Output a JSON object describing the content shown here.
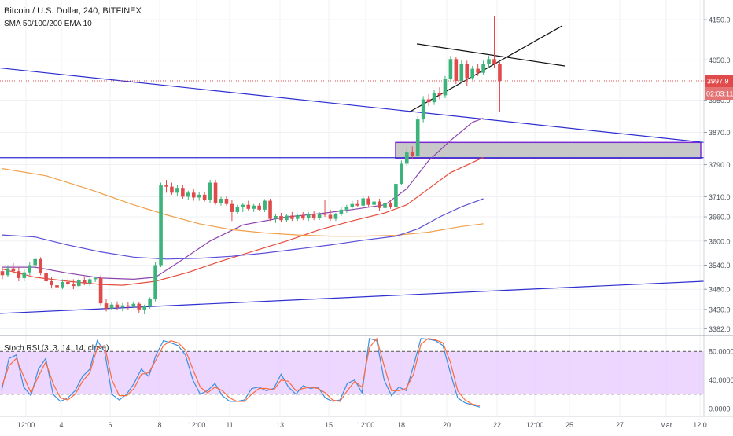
{
  "header": {
    "symbol_line": "Bitcoin / U.S. Dollar, 240, BITFINEX",
    "indicator_line": "SMA 50/100/200 EMA 10"
  },
  "colors": {
    "up_candle": "#3cb37a",
    "down_candle": "#e04a4a",
    "sma50": "#8e44ad",
    "sma100": "#e74c3c",
    "sma200": "#f0a04b",
    "ema10": "#5b4fd8",
    "trendline": "#2f2fd0",
    "stoch_k": "#3a8fe0",
    "stoch_d": "#ff6a3a",
    "stoch_band": "#e6c6ff",
    "price_label_bg": "#e04a4a"
  },
  "chart_data": [
    {
      "type": "candlestick",
      "title": "Bitcoin / U.S. Dollar, 240, BITFINEX",
      "y_ticks": [
        4150.0,
        4050.0,
        3950.0,
        3870.0,
        3790.0,
        3710.0,
        3660.0,
        3600.0,
        3540.0,
        3480.0,
        3430.0,
        3382.0
      ],
      "x_ticks": [
        "12:00",
        "4",
        "6",
        "8",
        "12:00",
        "11",
        "13",
        "15",
        "12:00",
        "18",
        "20",
        "22",
        "12:00",
        "25",
        "27",
        "Mar",
        "12:0"
      ],
      "last_price_label": "3997.9",
      "countdown_label": "02:03:11",
      "candles": [
        {
          "o": 3525,
          "h": 3535,
          "l": 3505,
          "c": 3515
        },
        {
          "o": 3515,
          "h": 3540,
          "l": 3510,
          "c": 3532
        },
        {
          "o": 3532,
          "h": 3545,
          "l": 3520,
          "c": 3525
        },
        {
          "o": 3525,
          "h": 3535,
          "l": 3500,
          "c": 3508
        },
        {
          "o": 3508,
          "h": 3530,
          "l": 3500,
          "c": 3522
        },
        {
          "o": 3522,
          "h": 3548,
          "l": 3515,
          "c": 3540
        },
        {
          "o": 3540,
          "h": 3560,
          "l": 3530,
          "c": 3555
        },
        {
          "o": 3555,
          "h": 3560,
          "l": 3515,
          "c": 3520
        },
        {
          "o": 3520,
          "h": 3528,
          "l": 3495,
          "c": 3500
        },
        {
          "o": 3500,
          "h": 3510,
          "l": 3482,
          "c": 3490
        },
        {
          "o": 3490,
          "h": 3500,
          "l": 3475,
          "c": 3485
        },
        {
          "o": 3485,
          "h": 3505,
          "l": 3480,
          "c": 3498
        },
        {
          "o": 3498,
          "h": 3512,
          "l": 3485,
          "c": 3492
        },
        {
          "o": 3492,
          "h": 3505,
          "l": 3480,
          "c": 3488
        },
        {
          "o": 3488,
          "h": 3508,
          "l": 3482,
          "c": 3502
        },
        {
          "o": 3502,
          "h": 3512,
          "l": 3490,
          "c": 3495
        },
        {
          "o": 3495,
          "h": 3510,
          "l": 3488,
          "c": 3505
        },
        {
          "o": 3505,
          "h": 3512,
          "l": 3498,
          "c": 3508
        },
        {
          "o": 3508,
          "h": 3515,
          "l": 3440,
          "c": 3445
        },
        {
          "o": 3445,
          "h": 3455,
          "l": 3425,
          "c": 3432
        },
        {
          "o": 3432,
          "h": 3448,
          "l": 3428,
          "c": 3442
        },
        {
          "o": 3442,
          "h": 3450,
          "l": 3428,
          "c": 3435
        },
        {
          "o": 3435,
          "h": 3446,
          "l": 3425,
          "c": 3440
        },
        {
          "o": 3440,
          "h": 3448,
          "l": 3430,
          "c": 3437
        },
        {
          "o": 3437,
          "h": 3450,
          "l": 3433,
          "c": 3444
        },
        {
          "o": 3444,
          "h": 3448,
          "l": 3422,
          "c": 3430
        },
        {
          "o": 3430,
          "h": 3442,
          "l": 3418,
          "c": 3438
        },
        {
          "o": 3438,
          "h": 3460,
          "l": 3432,
          "c": 3455
        },
        {
          "o": 3455,
          "h": 3548,
          "l": 3450,
          "c": 3540
        },
        {
          "o": 3540,
          "h": 3745,
          "l": 3535,
          "c": 3738
        },
        {
          "o": 3738,
          "h": 3752,
          "l": 3720,
          "c": 3735
        },
        {
          "o": 3735,
          "h": 3745,
          "l": 3715,
          "c": 3720
        },
        {
          "o": 3720,
          "h": 3740,
          "l": 3712,
          "c": 3732
        },
        {
          "o": 3732,
          "h": 3740,
          "l": 3705,
          "c": 3710
        },
        {
          "o": 3710,
          "h": 3725,
          "l": 3702,
          "c": 3720
        },
        {
          "o": 3720,
          "h": 3730,
          "l": 3700,
          "c": 3708
        },
        {
          "o": 3708,
          "h": 3722,
          "l": 3700,
          "c": 3715
        },
        {
          "o": 3715,
          "h": 3722,
          "l": 3698,
          "c": 3702
        },
        {
          "o": 3702,
          "h": 3752,
          "l": 3695,
          "c": 3745
        },
        {
          "o": 3745,
          "h": 3752,
          "l": 3690,
          "c": 3695
        },
        {
          "o": 3695,
          "h": 3710,
          "l": 3688,
          "c": 3705
        },
        {
          "o": 3705,
          "h": 3712,
          "l": 3688,
          "c": 3692
        },
        {
          "o": 3692,
          "h": 3702,
          "l": 3650,
          "c": 3672
        },
        {
          "o": 3672,
          "h": 3690,
          "l": 3668,
          "c": 3685
        },
        {
          "o": 3685,
          "h": 3695,
          "l": 3672,
          "c": 3690
        },
        {
          "o": 3690,
          "h": 3700,
          "l": 3676,
          "c": 3680
        },
        {
          "o": 3680,
          "h": 3692,
          "l": 3672,
          "c": 3688
        },
        {
          "o": 3688,
          "h": 3695,
          "l": 3676,
          "c": 3678
        },
        {
          "o": 3678,
          "h": 3704,
          "l": 3672,
          "c": 3700
        },
        {
          "o": 3700,
          "h": 3705,
          "l": 3650,
          "c": 3655
        },
        {
          "o": 3655,
          "h": 3668,
          "l": 3645,
          "c": 3662
        },
        {
          "o": 3662,
          "h": 3670,
          "l": 3648,
          "c": 3652
        },
        {
          "o": 3652,
          "h": 3666,
          "l": 3648,
          "c": 3663
        },
        {
          "o": 3663,
          "h": 3672,
          "l": 3650,
          "c": 3655
        },
        {
          "o": 3655,
          "h": 3668,
          "l": 3650,
          "c": 3664
        },
        {
          "o": 3664,
          "h": 3672,
          "l": 3652,
          "c": 3656
        },
        {
          "o": 3656,
          "h": 3672,
          "l": 3650,
          "c": 3668
        },
        {
          "o": 3668,
          "h": 3675,
          "l": 3652,
          "c": 3658
        },
        {
          "o": 3658,
          "h": 3672,
          "l": 3652,
          "c": 3668
        },
        {
          "o": 3668,
          "h": 3702,
          "l": 3660,
          "c": 3665
        },
        {
          "o": 3665,
          "h": 3678,
          "l": 3650,
          "c": 3655
        },
        {
          "o": 3655,
          "h": 3670,
          "l": 3650,
          "c": 3668
        },
        {
          "o": 3668,
          "h": 3685,
          "l": 3662,
          "c": 3678
        },
        {
          "o": 3678,
          "h": 3690,
          "l": 3670,
          "c": 3685
        },
        {
          "o": 3685,
          "h": 3700,
          "l": 3678,
          "c": 3692
        },
        {
          "o": 3692,
          "h": 3702,
          "l": 3684,
          "c": 3688
        },
        {
          "o": 3688,
          "h": 3712,
          "l": 3684,
          "c": 3706
        },
        {
          "o": 3706,
          "h": 3712,
          "l": 3685,
          "c": 3690
        },
        {
          "o": 3690,
          "h": 3702,
          "l": 3680,
          "c": 3698
        },
        {
          "o": 3698,
          "h": 3705,
          "l": 3675,
          "c": 3682
        },
        {
          "o": 3682,
          "h": 3700,
          "l": 3678,
          "c": 3695
        },
        {
          "o": 3695,
          "h": 3702,
          "l": 3680,
          "c": 3684
        },
        {
          "o": 3684,
          "h": 3750,
          "l": 3682,
          "c": 3742
        },
        {
          "o": 3742,
          "h": 3800,
          "l": 3738,
          "c": 3792
        },
        {
          "o": 3792,
          "h": 3830,
          "l": 3786,
          "c": 3820
        },
        {
          "o": 3820,
          "h": 3835,
          "l": 3805,
          "c": 3812
        },
        {
          "o": 3812,
          "h": 3910,
          "l": 3808,
          "c": 3902
        },
        {
          "o": 3902,
          "h": 3960,
          "l": 3895,
          "c": 3952
        },
        {
          "o": 3952,
          "h": 3965,
          "l": 3935,
          "c": 3945
        },
        {
          "o": 3945,
          "h": 3975,
          "l": 3938,
          "c": 3968
        },
        {
          "o": 3968,
          "h": 3982,
          "l": 3952,
          "c": 3962
        },
        {
          "o": 3962,
          "h": 4010,
          "l": 3955,
          "c": 4002
        },
        {
          "o": 4002,
          "h": 4060,
          "l": 3995,
          "c": 4052
        },
        {
          "o": 4052,
          "h": 4058,
          "l": 3990,
          "c": 3998
        },
        {
          "o": 3998,
          "h": 4050,
          "l": 3992,
          "c": 4040
        },
        {
          "o": 4040,
          "h": 4048,
          "l": 3985,
          "c": 4005
        },
        {
          "o": 4005,
          "h": 4035,
          "l": 4000,
          "c": 4028
        },
        {
          "o": 4028,
          "h": 4040,
          "l": 4010,
          "c": 4018
        },
        {
          "o": 4018,
          "h": 4048,
          "l": 4012,
          "c": 4040
        },
        {
          "o": 4040,
          "h": 4060,
          "l": 4030,
          "c": 4052
        },
        {
          "o": 4052,
          "h": 4160,
          "l": 4030,
          "c": 4040
        },
        {
          "o": 4040,
          "h": 4045,
          "l": 3920,
          "c": 3998
        }
      ],
      "lines": [
        {
          "name": "SMA 50",
          "points": [
            [
              0,
              3535
            ],
            [
              6,
              3535
            ],
            [
              12,
              3520
            ],
            [
              18,
              3508
            ],
            [
              24,
              3505
            ],
            [
              28,
              3510
            ],
            [
              32,
              3545
            ],
            [
              38,
              3600
            ],
            [
              44,
              3640
            ],
            [
              52,
              3660
            ],
            [
              58,
              3668
            ],
            [
              64,
              3678
            ],
            [
              70,
              3690
            ],
            [
              74,
              3730
            ],
            [
              78,
              3800
            ],
            [
              82,
              3850
            ],
            [
              86,
              3895
            ],
            [
              88,
              3905
            ]
          ]
        },
        {
          "name": "SMA 100",
          "points": [
            [
              0,
              3530
            ],
            [
              6,
              3510
            ],
            [
              12,
              3500
            ],
            [
              18,
              3492
            ],
            [
              22,
              3490
            ],
            [
              28,
              3500
            ],
            [
              34,
              3522
            ],
            [
              40,
              3550
            ],
            [
              46,
              3575
            ],
            [
              52,
              3600
            ],
            [
              58,
              3628
            ],
            [
              64,
              3650
            ],
            [
              70,
              3670
            ],
            [
              74,
              3690
            ],
            [
              78,
              3730
            ],
            [
              82,
              3770
            ],
            [
              86,
              3795
            ],
            [
              88,
              3808
            ]
          ]
        },
        {
          "name": "SMA 200",
          "points": [
            [
              0,
              3780
            ],
            [
              8,
              3762
            ],
            [
              16,
              3728
            ],
            [
              24,
              3690
            ],
            [
              30,
              3665
            ],
            [
              36,
              3643
            ],
            [
              42,
              3628
            ],
            [
              48,
              3620
            ],
            [
              54,
              3615
            ],
            [
              60,
              3612
            ],
            [
              66,
              3612
            ],
            [
              72,
              3614
            ],
            [
              78,
              3622
            ],
            [
              84,
              3636
            ],
            [
              88,
              3643
            ]
          ]
        },
        {
          "name": "EMA 10",
          "points": [
            [
              0,
              3615
            ],
            [
              6,
              3610
            ],
            [
              12,
              3590
            ],
            [
              18,
              3573
            ],
            [
              24,
              3560
            ],
            [
              30,
              3555
            ],
            [
              36,
              3557
            ],
            [
              42,
              3562
            ],
            [
              48,
              3570
            ],
            [
              54,
              3580
            ],
            [
              60,
              3590
            ],
            [
              66,
              3602
            ],
            [
              72,
              3612
            ],
            [
              76,
              3630
            ],
            [
              80,
              3660
            ],
            [
              84,
              3685
            ],
            [
              88,
              3705
            ]
          ]
        }
      ]
    },
    {
      "type": "line",
      "title": "Stoch RSI (3, 3, 14, 14, close)",
      "y_ticks": [
        "80.0000",
        "40.0000",
        "0.0000"
      ],
      "ylim": [
        0,
        100
      ],
      "band": [
        20,
        80
      ],
      "series": [
        {
          "name": "K",
          "values": [
            25,
            70,
            75,
            30,
            18,
            55,
            70,
            20,
            10,
            15,
            25,
            45,
            55,
            95,
            80,
            20,
            12,
            20,
            35,
            55,
            45,
            75,
            95,
            92,
            88,
            75,
            40,
            20,
            25,
            35,
            18,
            10,
            10,
            12,
            28,
            30,
            25,
            28,
            48,
            30,
            20,
            32,
            28,
            30,
            15,
            10,
            12,
            35,
            40,
            22,
            98,
            95,
            40,
            18,
            30,
            25,
            60,
            98,
            97,
            95,
            88,
            50,
            15,
            8,
            5,
            2
          ]
        },
        {
          "name": "D",
          "values": [
            30,
            60,
            70,
            45,
            22,
            45,
            65,
            35,
            15,
            12,
            20,
            38,
            50,
            85,
            88,
            40,
            18,
            18,
            28,
            48,
            50,
            68,
            88,
            95,
            92,
            82,
            55,
            30,
            22,
            30,
            25,
            15,
            10,
            10,
            20,
            28,
            28,
            26,
            40,
            38,
            25,
            28,
            30,
            28,
            22,
            12,
            10,
            25,
            38,
            30,
            85,
            98,
            60,
            25,
            25,
            28,
            48,
            90,
            98,
            96,
            92,
            65,
            25,
            12,
            6,
            4
          ]
        }
      ]
    }
  ]
}
